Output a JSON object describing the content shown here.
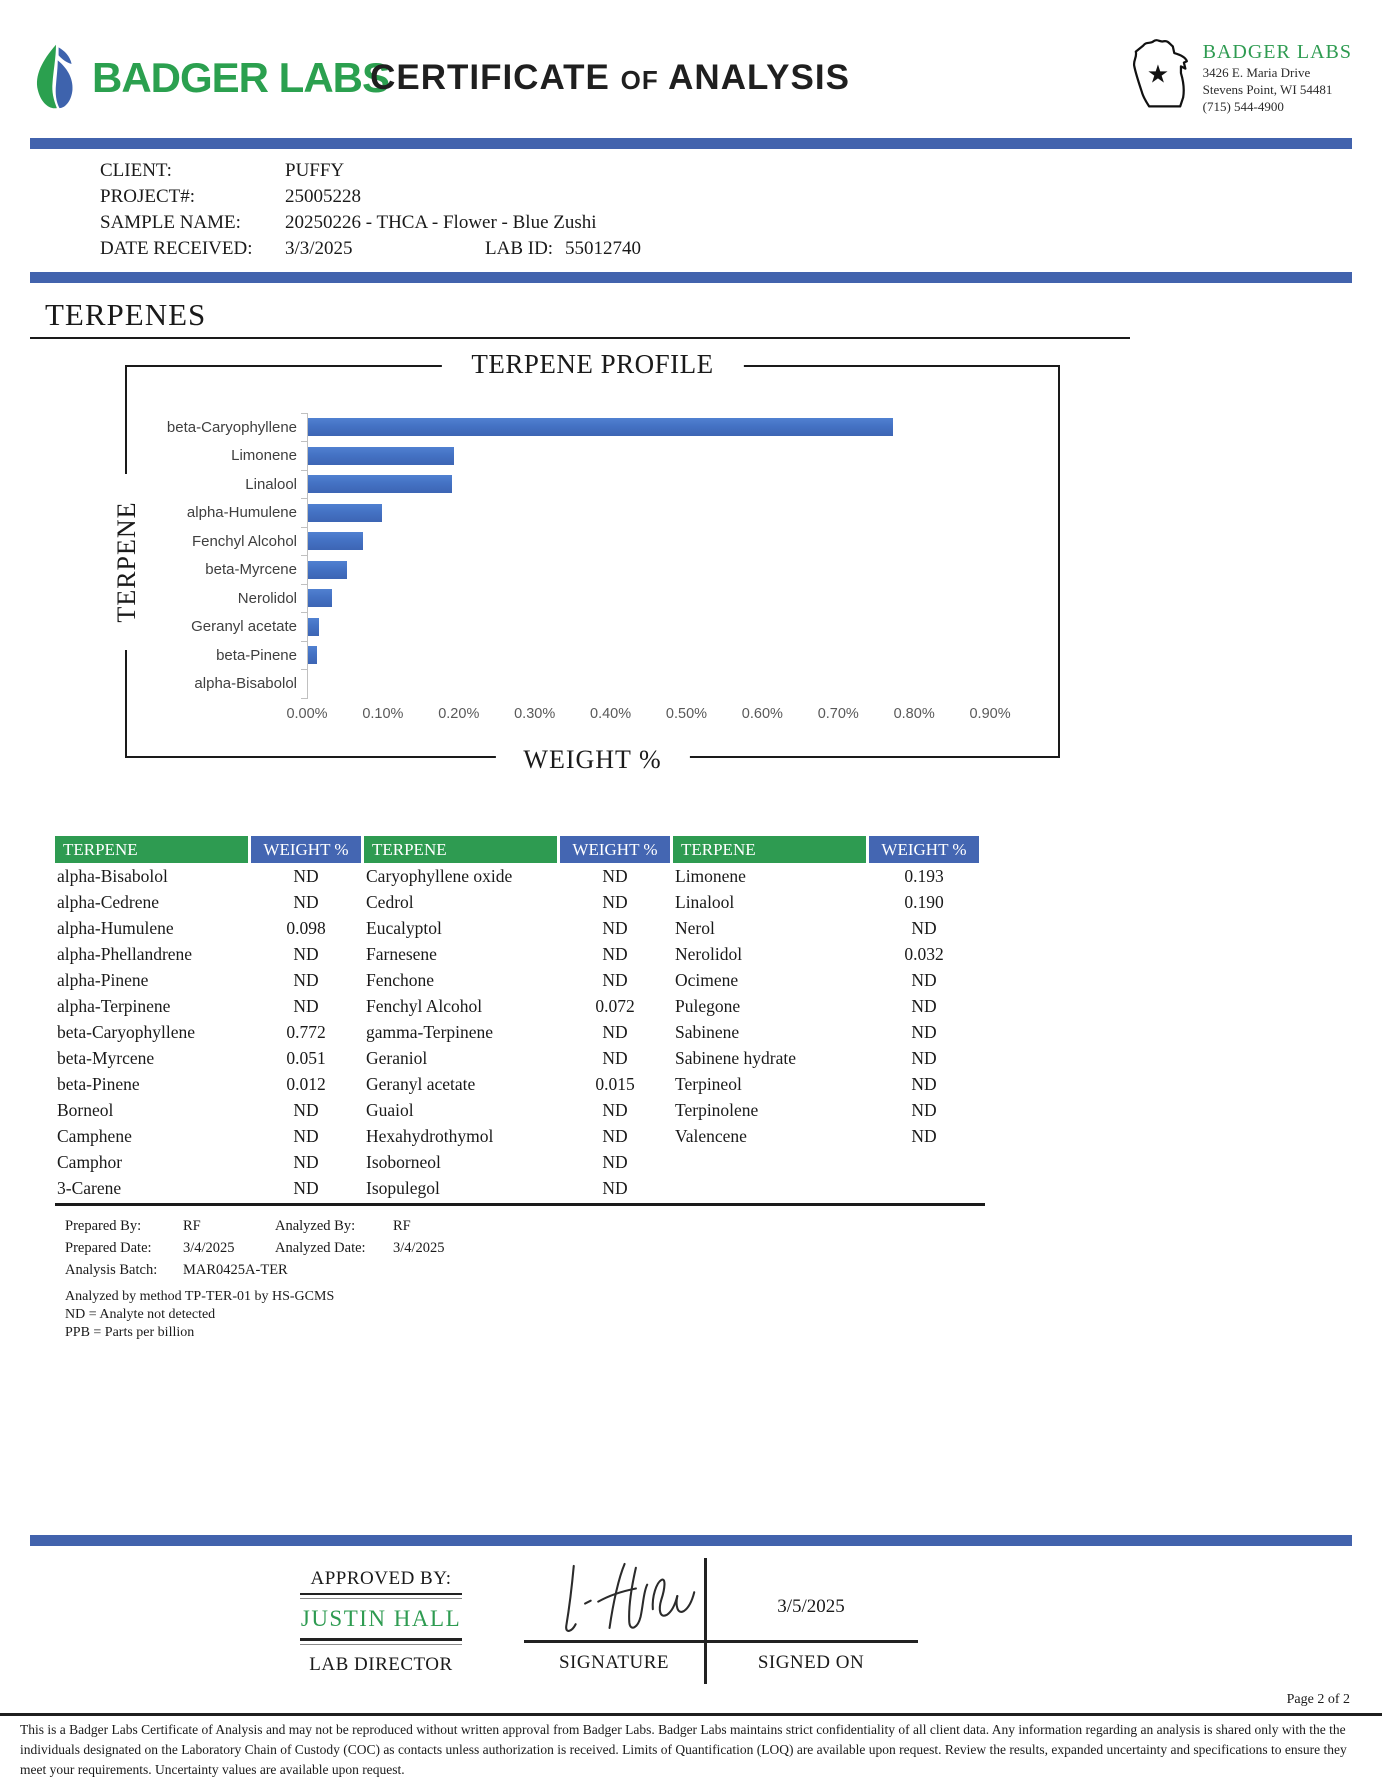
{
  "header": {
    "logo_text": "BADGER LABS",
    "title_part1": "CERTIFICATE",
    "title_part2": "OF",
    "title_part3": "ANALYSIS",
    "lab_name": "BADGER LABS",
    "lab_address_line1": "3426 E. Maria Drive",
    "lab_address_line2": "Stevens Point, WI 54481",
    "lab_phone": "(715) 544-4900"
  },
  "sample_info": {
    "client_label": "CLIENT:",
    "client_value": "PUFFY",
    "project_label": "PROJECT#:",
    "project_value": "25005228",
    "sample_label": "SAMPLE NAME:",
    "sample_value": "20250226 - THCA - Flower - Blue Zushi",
    "date_label": "DATE RECEIVED:",
    "date_value": "3/3/2025",
    "lab_id_label": "LAB ID:",
    "lab_id_value": "55012740"
  },
  "section_title": "TERPENES",
  "chart_data": {
    "type": "bar",
    "orientation": "horizontal",
    "title": "TERPENE PROFILE",
    "xlabel": "WEIGHT %",
    "ylabel": "TERPENE",
    "categories": [
      "beta-Caryophyllene",
      "Limonene",
      "Linalool",
      "alpha-Humulene",
      "Fenchyl Alcohol",
      "beta-Myrcene",
      "Nerolidol",
      "Geranyl acetate",
      "beta-Pinene",
      "alpha-Bisabolol"
    ],
    "values": [
      0.772,
      0.193,
      0.19,
      0.098,
      0.072,
      0.051,
      0.032,
      0.015,
      0.012,
      0
    ],
    "values_note": "alpha-Bisabolol is ND (no bar)",
    "xlim": [
      0,
      0.95
    ],
    "x_tick_values": [
      0,
      0.1,
      0.2,
      0.3,
      0.4,
      0.5,
      0.6,
      0.7,
      0.8,
      0.9
    ],
    "x_ticks": [
      "0.00%",
      "0.10%",
      "0.20%",
      "0.30%",
      "0.40%",
      "0.50%",
      "0.60%",
      "0.70%",
      "0.80%",
      "0.90%"
    ],
    "grid": false,
    "legend": false,
    "bar_color": "#4472C4"
  },
  "results_table": {
    "col_headers": [
      "TERPENE",
      "WEIGHT %"
    ],
    "columns": [
      {
        "entries": [
          {
            "name": "alpha-Bisabolol",
            "value": "ND"
          },
          {
            "name": "alpha-Cedrene",
            "value": "ND"
          },
          {
            "name": "alpha-Humulene",
            "value": "0.098"
          },
          {
            "name": "alpha-Phellandrene",
            "value": "ND"
          },
          {
            "name": "alpha-Pinene",
            "value": "ND"
          },
          {
            "name": "alpha-Terpinene",
            "value": "ND"
          },
          {
            "name": "beta-Caryophyllene",
            "value": "0.772"
          },
          {
            "name": "beta-Myrcene",
            "value": "0.051"
          },
          {
            "name": "beta-Pinene",
            "value": "0.012"
          },
          {
            "name": "Borneol",
            "value": "ND"
          },
          {
            "name": "Camphene",
            "value": "ND"
          },
          {
            "name": "Camphor",
            "value": "ND"
          },
          {
            "name": "3-Carene",
            "value": "ND"
          }
        ]
      },
      {
        "entries": [
          {
            "name": "Caryophyllene oxide",
            "value": "ND"
          },
          {
            "name": "Cedrol",
            "value": "ND"
          },
          {
            "name": "Eucalyptol",
            "value": "ND"
          },
          {
            "name": "Farnesene",
            "value": "ND"
          },
          {
            "name": "Fenchone",
            "value": "ND"
          },
          {
            "name": "Fenchyl Alcohol",
            "value": "0.072"
          },
          {
            "name": "gamma-Terpinene",
            "value": "ND"
          },
          {
            "name": "Geraniol",
            "value": "ND"
          },
          {
            "name": "Geranyl acetate",
            "value": "0.015"
          },
          {
            "name": "Guaiol",
            "value": "ND"
          },
          {
            "name": "Hexahydrothymol",
            "value": "ND"
          },
          {
            "name": "Isoborneol",
            "value": "ND"
          },
          {
            "name": "Isopulegol",
            "value": "ND"
          }
        ]
      },
      {
        "entries": [
          {
            "name": "Limonene",
            "value": "0.193"
          },
          {
            "name": "Linalool",
            "value": "0.190"
          },
          {
            "name": "Nerol",
            "value": "ND"
          },
          {
            "name": "Nerolidol",
            "value": "0.032"
          },
          {
            "name": "Ocimene",
            "value": "ND"
          },
          {
            "name": "Pulegone",
            "value": "ND"
          },
          {
            "name": "Sabinene",
            "value": "ND"
          },
          {
            "name": "Sabinene hydrate",
            "value": "ND"
          },
          {
            "name": "Terpineol",
            "value": "ND"
          },
          {
            "name": "Terpinolene",
            "value": "ND"
          },
          {
            "name": "Valencene",
            "value": "ND"
          }
        ]
      }
    ]
  },
  "notes": {
    "prepared_by_label": "Prepared By:",
    "prepared_by": "RF",
    "analyzed_by_label": "Analyzed By:",
    "analyzed_by": "RF",
    "prepared_date_label": "Prepared Date:",
    "prepared_date": "3/4/2025",
    "analyzed_date_label": "Analyzed Date:",
    "analyzed_date": "3/4/2025",
    "analysis_batch_label": "Analysis Batch:",
    "analysis_batch": "MAR0425A-TER",
    "method_note": "Analyzed by method TP-TER-01 by HS-GCMS",
    "nd_note": "ND = Analyte not detected",
    "ppb_note": "PPB = Parts per billion"
  },
  "approval": {
    "approved_by_label": "APPROVED BY:",
    "approver_name": "JUSTIN HALL",
    "approver_title": "LAB DIRECTOR",
    "signature_label": "SIGNATURE",
    "signed_on_date": "3/5/2025",
    "signed_on_label": "SIGNED ON"
  },
  "footer": {
    "page_label": "Page 2 of 2",
    "disclaimer": "This is a Badger Labs Certificate of Analysis and may not be reproduced without written approval from Badger Labs. Badger Labs maintains strict confidentiality of all client data. Any information regarding an analysis is shared only with the the individuals designated on the Laboratory Chain of Custody (COC) as contacts unless authorization is received. Limits of Quantification (LOQ) are available upon request. Review the results, expanded uncertainty and specifications to ensure they meet your requirements. Uncertainty values are available upon request."
  },
  "colors": {
    "divider_blue": "#4263AD",
    "table_header_green": "#2E9B51",
    "table_header_blue": "#4466B2",
    "bar_blue": "#4472C4",
    "brand_green": "#2BA04F"
  }
}
